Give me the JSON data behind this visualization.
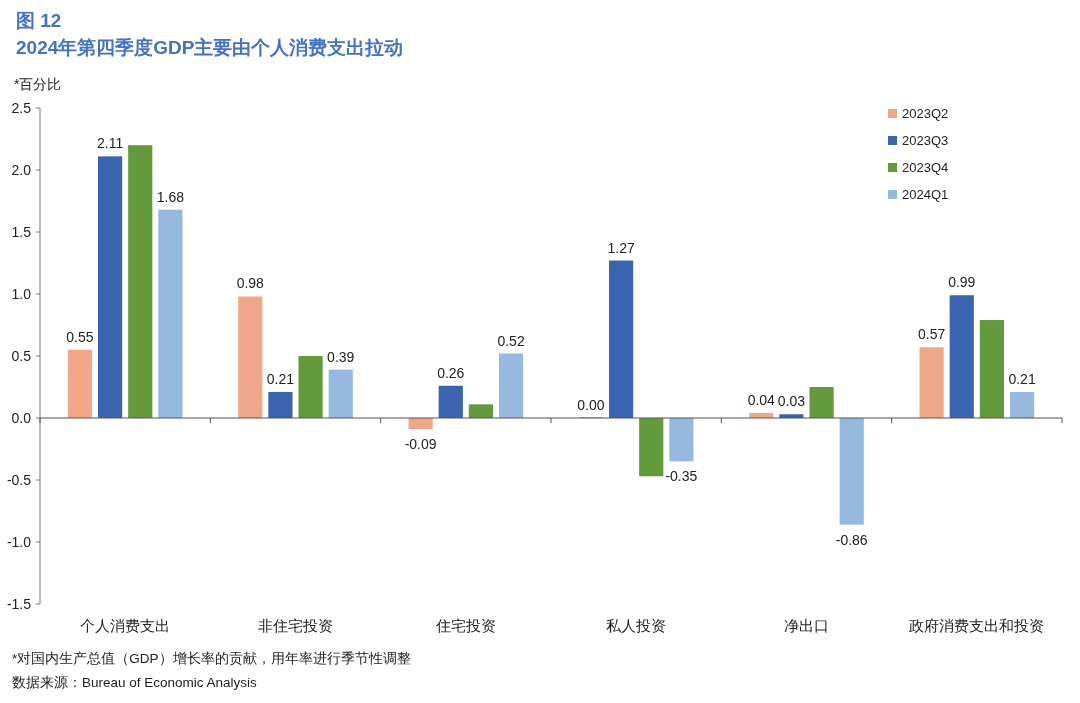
{
  "chart_data": {
    "type": "bar",
    "title": "图 12",
    "subtitle": "2024年第四季度GDP主要由个人消费支出拉动",
    "ylabel": "*百分比",
    "categories": [
      "个人消费支出",
      "非住宅投资",
      "住宅投资",
      "私人投资",
      "净出口",
      "政府消费支出和投资"
    ],
    "series": [
      {
        "name": "2023Q2",
        "color": "#f0a688",
        "values": [
          0.55,
          0.98,
          -0.09,
          0.0,
          0.04,
          0.57
        ],
        "value_labels": [
          "0.55",
          "0.98",
          "-0.09",
          "0.00",
          "0.04",
          "0.57"
        ]
      },
      {
        "name": "2023Q3",
        "color": "#3a64ad",
        "values": [
          2.11,
          0.21,
          0.26,
          1.27,
          0.03,
          0.99
        ],
        "value_labels": [
          "2.11",
          "0.21",
          "0.26",
          "1.27",
          "0.03",
          "0.99"
        ]
      },
      {
        "name": "2023Q4",
        "color": "#629a3c",
        "values": [
          2.2,
          0.5,
          0.11,
          -0.47,
          0.25,
          0.79
        ],
        "value_labels": [
          null,
          null,
          null,
          null,
          null,
          null
        ]
      },
      {
        "name": "2024Q1",
        "color": "#97b9e0",
        "values": [
          1.68,
          0.39,
          0.52,
          -0.35,
          -0.86,
          0.21
        ],
        "value_labels": [
          "1.68",
          "0.39",
          "0.52",
          "-0.35",
          "-0.86",
          "0.21"
        ]
      }
    ],
    "ylim": [
      -1.5,
      2.5
    ],
    "yticks": [
      {
        "value": 2.5,
        "label": "2.5"
      },
      {
        "value": 2.0,
        "label": "2.0"
      },
      {
        "value": 1.5,
        "label": "1.5"
      },
      {
        "value": 1.0,
        "label": "1.0"
      },
      {
        "value": 0.5,
        "label": "0.5"
      },
      {
        "value": 0,
        "label": "0.0"
      },
      {
        "value": -0.5,
        "label": "-0.5"
      },
      {
        "value": -1.0,
        "label": "-1.0"
      },
      {
        "value": -1.5,
        "label": "-1.5"
      }
    ],
    "legend": "top right",
    "annotations": [
      "*对国内生产总值（GDP）增长率的贡献，用年率进行季节性调整",
      "数据来源：Bureau of Economic Analysis"
    ]
  }
}
